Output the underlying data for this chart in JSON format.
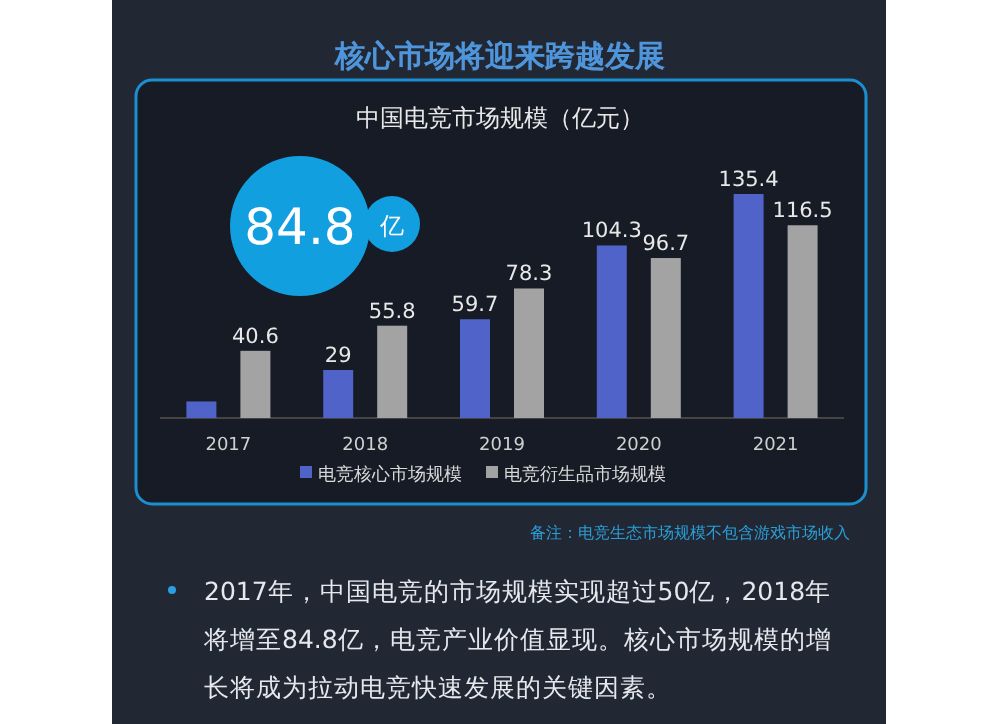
{
  "chart_data": {
    "type": "bar",
    "title": "核心市场将迎来跨越发展",
    "subtitle": "中国电竞市场规模（亿元）",
    "categories": [
      "2017",
      "2018",
      "2019",
      "2020",
      "2021"
    ],
    "series": [
      {
        "name": "电竞核心市场规模",
        "color": "#4f63c8",
        "values": [
          10,
          29,
          59.7,
          104.3,
          135.4
        ],
        "value_labels": [
          null,
          "29",
          "59.7",
          "104.3",
          "135.4"
        ]
      },
      {
        "name": "电竞衍生品市场规模",
        "color": "#a3a3a3",
        "values": [
          40.6,
          55.8,
          78.3,
          96.7,
          116.5
        ],
        "value_labels": [
          "40.6",
          "55.8",
          "78.3",
          "96.7",
          "116.5"
        ]
      }
    ],
    "legend": "bottom",
    "annotations": [
      "84.8",
      "亿",
      "备注：电竞生态市场规模不包含游戏市场收入",
      "2017年，中国电竞的市场规模实现超过50亿，2018年将增至84.8亿，电竞产业价值显现。核心市场规模的增长将成为拉动电竞快速发展的关键因素。"
    ]
  }
}
